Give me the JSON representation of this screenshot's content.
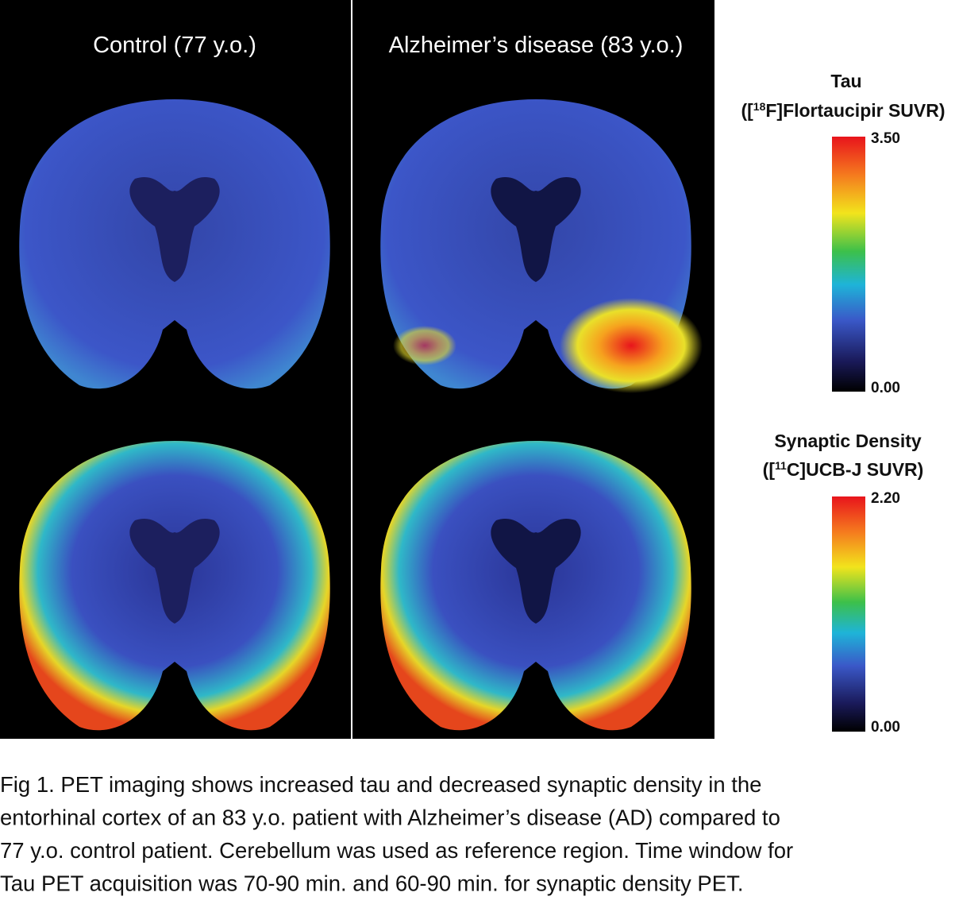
{
  "panels": {
    "control": {
      "title": "Control (77 y.o.)"
    },
    "alzheimers": {
      "title": "Alzheimer’s disease (83 y.o.)"
    }
  },
  "colorbars": {
    "tau": {
      "title": "Tau",
      "subtitle": {
        "before": "([",
        "sup": "18",
        "after": "F]Flortaucipir SUVR)"
      },
      "max": "3.50",
      "min": "0.00"
    },
    "synaptic": {
      "title": "Synaptic Density",
      "subtitle": {
        "before": "([",
        "sup": "11",
        "after": "C]UCB-J SUVR)"
      },
      "max": "2.20",
      "min": "0.00"
    }
  },
  "caption": {
    "lines": [
      "Fig 1. PET imaging shows increased tau and decreased synaptic density in the",
      "entorhinal cortex of an 83 y.o. patient with Alzheimer’s disease (AD) compared to",
      "77 y.o. control patient. Cerebellum was used as reference region. Time window for",
      "Tau PET acquisition was 70-90 min. and 60-90 min. for synaptic density PET."
    ]
  }
}
